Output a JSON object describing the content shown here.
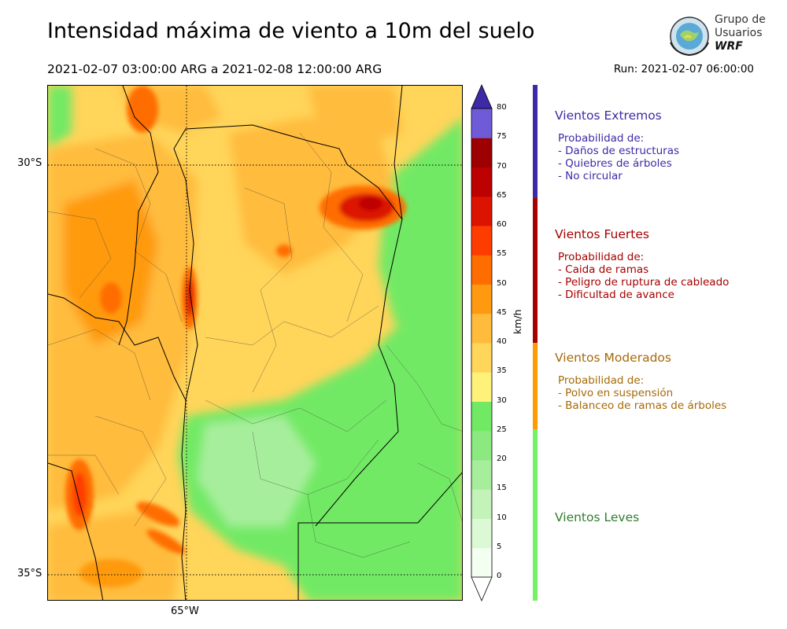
{
  "title": "Intensidad máxima de viento a 10m del suelo",
  "subtitle": "2021-02-07 03:00:00 ARG  a  2021-02-08 12:00:00 ARG",
  "run": "Run: 2021-02-07 06:00:00",
  "logo": {
    "line1": "Grupo de",
    "line2": "Usuarios",
    "line3": "WRF"
  },
  "map": {
    "lat_labels": [
      "30°S",
      "35°S"
    ],
    "lon_labels": [
      "65°W"
    ]
  },
  "colorbar": {
    "unit": "km/h",
    "ticks": [
      "0",
      "5",
      "10",
      "15",
      "20",
      "25",
      "30",
      "35",
      "40",
      "45",
      "50",
      "55",
      "60",
      "65",
      "70",
      "75",
      "80"
    ],
    "colors": [
      "#f3fff1",
      "#dcf9d6",
      "#c3f3b8",
      "#a7ee9c",
      "#8be97f",
      "#72e965",
      "#fff27a",
      "#ffd55a",
      "#ffbc3c",
      "#ff9a10",
      "#ff6d00",
      "#ff3c00",
      "#dc1300",
      "#bd0000",
      "#9c0000",
      "#6f5ad8",
      "#5d48cd",
      "#4933b8"
    ],
    "top_color": "#3e2aa6"
  },
  "categories": [
    {
      "name": "Vientos Extremos",
      "color": "#3e2aa6",
      "desc": [
        "Probabilidad de:",
        "- Daños de estructuras",
        "- Quiebres de árboles",
        "- No circular"
      ]
    },
    {
      "name": "Vientos Fuertes",
      "color": "#a60000",
      "desc": [
        "Probabilidad de:",
        "- Caida de ramas",
        "- Peligro de ruptura de cableado",
        "- Dificultad de avance"
      ]
    },
    {
      "name": "Vientos Moderados",
      "color": "#a56a08",
      "bar_color": "#ff9a00",
      "desc": [
        "Probabilidad de:",
        "- Polvo en suspensión",
        "- Balanceo de ramas de árboles"
      ]
    },
    {
      "name": "Vientos Leves",
      "color": "#2e7d2e",
      "bar_color": "#72f265",
      "desc": []
    }
  ]
}
